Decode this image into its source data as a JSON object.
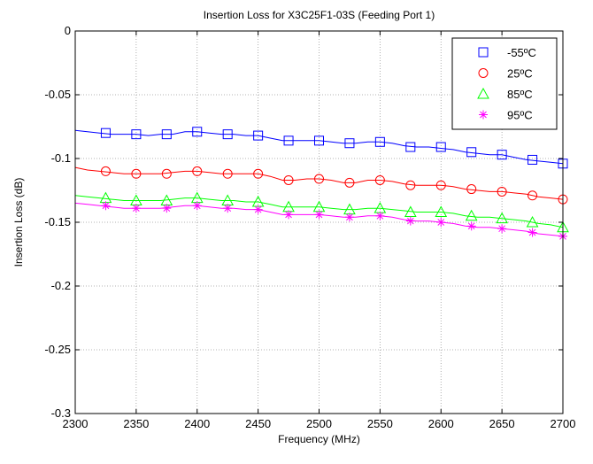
{
  "chart_data": {
    "type": "line",
    "title": "Insertion Loss for X3C25F1-03S (Feeding Port 1)",
    "xlabel": "Frequency (MHz)",
    "ylabel": "Insertion Loss (dB)",
    "xlim": [
      2300,
      2700
    ],
    "ylim": [
      -0.3,
      0
    ],
    "x_ticks": [
      2300,
      2350,
      2400,
      2450,
      2500,
      2550,
      2600,
      2650,
      2700
    ],
    "x_tick_labels": [
      "2300",
      "2350",
      "2400",
      "2450",
      "2500",
      "2550",
      "2600",
      "2650",
      "2700"
    ],
    "y_ticks": [
      0,
      -0.05,
      -0.1,
      -0.15,
      -0.2,
      -0.25,
      -0.3
    ],
    "y_tick_labels": [
      "0",
      "-0.05",
      "-0.1",
      "-0.15",
      "-0.2",
      "-0.25",
      "-0.3"
    ],
    "grid": true,
    "legend_position": "top-right",
    "series": [
      {
        "name": "-55ºC",
        "color": "#0000ff",
        "marker": "square",
        "line_x": [
          2300,
          2310,
          2320,
          2330,
          2340,
          2350,
          2360,
          2370,
          2380,
          2390,
          2400,
          2410,
          2420,
          2430,
          2440,
          2450,
          2460,
          2470,
          2480,
          2490,
          2500,
          2510,
          2520,
          2530,
          2540,
          2550,
          2560,
          2570,
          2580,
          2590,
          2600,
          2610,
          2620,
          2630,
          2640,
          2650,
          2660,
          2670,
          2680,
          2690,
          2700
        ],
        "line_y": [
          -0.078,
          -0.079,
          -0.08,
          -0.081,
          -0.081,
          -0.081,
          -0.082,
          -0.081,
          -0.081,
          -0.079,
          -0.079,
          -0.08,
          -0.081,
          -0.081,
          -0.082,
          -0.082,
          -0.084,
          -0.086,
          -0.086,
          -0.086,
          -0.086,
          -0.087,
          -0.088,
          -0.088,
          -0.087,
          -0.087,
          -0.088,
          -0.09,
          -0.091,
          -0.091,
          -0.092,
          -0.093,
          -0.095,
          -0.096,
          -0.097,
          -0.097,
          -0.099,
          -0.101,
          -0.102,
          -0.103,
          -0.104
        ],
        "marker_x": [
          2325,
          2350,
          2375,
          2400,
          2425,
          2450,
          2475,
          2500,
          2525,
          2550,
          2575,
          2600,
          2625,
          2650,
          2675,
          2700
        ],
        "marker_y": [
          -0.08,
          -0.081,
          -0.081,
          -0.079,
          -0.081,
          -0.082,
          -0.086,
          -0.086,
          -0.088,
          -0.087,
          -0.091,
          -0.091,
          -0.095,
          -0.097,
          -0.101,
          -0.104
        ]
      },
      {
        "name": "25ºC",
        "color": "#ff0000",
        "marker": "circle",
        "line_x": [
          2300,
          2310,
          2320,
          2330,
          2340,
          2350,
          2360,
          2370,
          2380,
          2390,
          2400,
          2410,
          2420,
          2430,
          2440,
          2450,
          2460,
          2470,
          2480,
          2490,
          2500,
          2510,
          2520,
          2530,
          2540,
          2550,
          2560,
          2570,
          2580,
          2590,
          2600,
          2610,
          2620,
          2630,
          2640,
          2650,
          2660,
          2670,
          2680,
          2690,
          2700
        ],
        "line_y": [
          -0.107,
          -0.109,
          -0.11,
          -0.111,
          -0.112,
          -0.112,
          -0.112,
          -0.112,
          -0.111,
          -0.11,
          -0.11,
          -0.111,
          -0.112,
          -0.112,
          -0.112,
          -0.112,
          -0.114,
          -0.117,
          -0.117,
          -0.116,
          -0.116,
          -0.117,
          -0.119,
          -0.119,
          -0.117,
          -0.117,
          -0.118,
          -0.12,
          -0.121,
          -0.121,
          -0.121,
          -0.122,
          -0.124,
          -0.125,
          -0.126,
          -0.126,
          -0.127,
          -0.128,
          -0.13,
          -0.131,
          -0.132
        ],
        "marker_x": [
          2325,
          2350,
          2375,
          2400,
          2425,
          2450,
          2475,
          2500,
          2525,
          2550,
          2575,
          2600,
          2625,
          2650,
          2675,
          2700
        ],
        "marker_y": [
          -0.11,
          -0.112,
          -0.112,
          -0.11,
          -0.112,
          -0.112,
          -0.117,
          -0.116,
          -0.119,
          -0.117,
          -0.121,
          -0.121,
          -0.124,
          -0.126,
          -0.129,
          -0.132
        ]
      },
      {
        "name": "85ºC",
        "color": "#00ff00",
        "marker": "triangle",
        "line_x": [
          2300,
          2310,
          2320,
          2330,
          2340,
          2350,
          2360,
          2370,
          2380,
          2390,
          2400,
          2410,
          2420,
          2430,
          2440,
          2450,
          2460,
          2470,
          2480,
          2490,
          2500,
          2510,
          2520,
          2530,
          2540,
          2550,
          2560,
          2570,
          2580,
          2590,
          2600,
          2610,
          2620,
          2630,
          2640,
          2650,
          2660,
          2670,
          2680,
          2690,
          2700
        ],
        "line_y": [
          -0.129,
          -0.13,
          -0.131,
          -0.132,
          -0.133,
          -0.133,
          -0.133,
          -0.133,
          -0.132,
          -0.131,
          -0.131,
          -0.132,
          -0.133,
          -0.133,
          -0.134,
          -0.134,
          -0.136,
          -0.138,
          -0.138,
          -0.138,
          -0.138,
          -0.139,
          -0.14,
          -0.14,
          -0.139,
          -0.139,
          -0.14,
          -0.141,
          -0.142,
          -0.142,
          -0.142,
          -0.143,
          -0.145,
          -0.146,
          -0.146,
          -0.147,
          -0.148,
          -0.149,
          -0.151,
          -0.152,
          -0.154
        ],
        "marker_x": [
          2325,
          2350,
          2375,
          2400,
          2425,
          2450,
          2475,
          2500,
          2525,
          2550,
          2575,
          2600,
          2625,
          2650,
          2675,
          2700
        ],
        "marker_y": [
          -0.131,
          -0.133,
          -0.133,
          -0.131,
          -0.133,
          -0.134,
          -0.138,
          -0.138,
          -0.14,
          -0.139,
          -0.142,
          -0.142,
          -0.145,
          -0.147,
          -0.15,
          -0.154
        ]
      },
      {
        "name": "95ºC",
        "color": "#ff00ff",
        "marker": "asterisk",
        "line_x": [
          2300,
          2310,
          2320,
          2330,
          2340,
          2350,
          2360,
          2370,
          2380,
          2390,
          2400,
          2410,
          2420,
          2430,
          2440,
          2450,
          2460,
          2470,
          2480,
          2490,
          2500,
          2510,
          2520,
          2530,
          2540,
          2550,
          2560,
          2570,
          2580,
          2590,
          2600,
          2610,
          2620,
          2630,
          2640,
          2650,
          2660,
          2670,
          2680,
          2690,
          2700
        ],
        "line_y": [
          -0.135,
          -0.136,
          -0.137,
          -0.138,
          -0.139,
          -0.139,
          -0.139,
          -0.139,
          -0.138,
          -0.137,
          -0.137,
          -0.138,
          -0.139,
          -0.139,
          -0.14,
          -0.14,
          -0.142,
          -0.144,
          -0.144,
          -0.144,
          -0.144,
          -0.145,
          -0.146,
          -0.146,
          -0.145,
          -0.145,
          -0.146,
          -0.148,
          -0.149,
          -0.149,
          -0.15,
          -0.151,
          -0.153,
          -0.154,
          -0.154,
          -0.155,
          -0.156,
          -0.157,
          -0.159,
          -0.16,
          -0.161
        ],
        "marker_x": [
          2325,
          2350,
          2375,
          2400,
          2425,
          2450,
          2475,
          2500,
          2525,
          2550,
          2575,
          2600,
          2625,
          2650,
          2675,
          2700
        ],
        "marker_y": [
          -0.137,
          -0.139,
          -0.139,
          -0.137,
          -0.139,
          -0.14,
          -0.144,
          -0.144,
          -0.146,
          -0.145,
          -0.149,
          -0.15,
          -0.153,
          -0.155,
          -0.158,
          -0.161
        ]
      }
    ]
  }
}
